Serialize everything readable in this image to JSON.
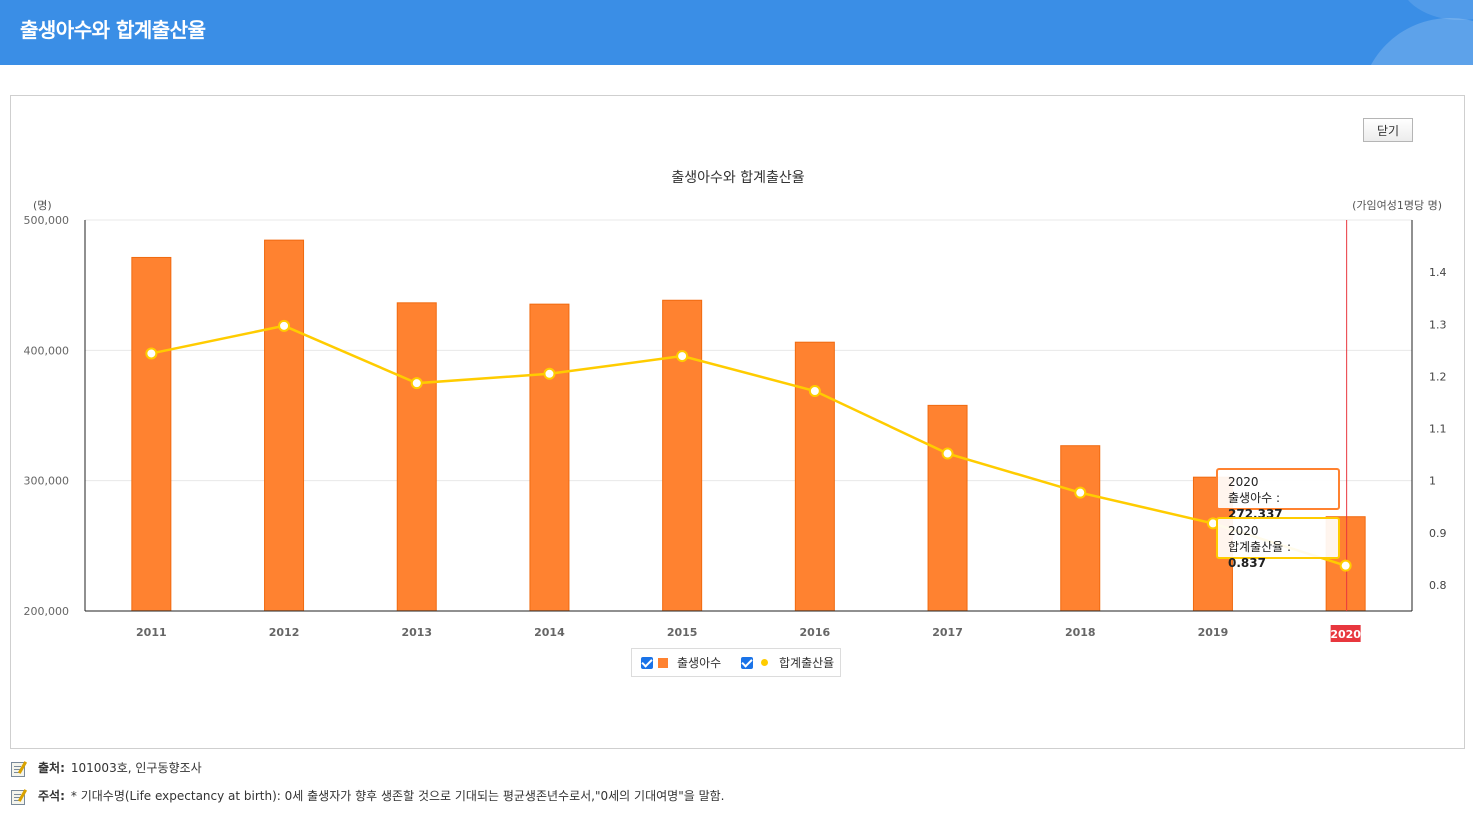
{
  "header": {
    "title": "출생아수와 합계출산율"
  },
  "buttons": {
    "close_label": "닫기"
  },
  "chart_data": {
    "type": "bar",
    "title": "출생아수와 합계출산율",
    "categories": [
      "2011",
      "2012",
      "2013",
      "2014",
      "2015",
      "2016",
      "2017",
      "2018",
      "2019",
      "2020"
    ],
    "series": [
      {
        "name": "출생아수",
        "type": "bar",
        "axis": "left",
        "color": "#ff8230",
        "values": [
          471265,
          484550,
          436455,
          435435,
          438420,
          406243,
          357771,
          326822,
          302676,
          272337
        ]
      },
      {
        "name": "합계출산율",
        "type": "line",
        "axis": "right",
        "color": "#ffcc00",
        "values": [
          1.244,
          1.297,
          1.187,
          1.205,
          1.239,
          1.172,
          1.052,
          0.977,
          0.918,
          0.837
        ]
      }
    ],
    "y_left": {
      "unit": "(명)",
      "ylim": [
        200000,
        500000
      ],
      "ticks": [
        "200,000",
        "300,000",
        "400,000",
        "500,000"
      ],
      "tick_values": [
        200000,
        300000,
        400000,
        500000
      ]
    },
    "y_right": {
      "unit": "(가임여성1명당 명)",
      "ylim": [
        0.75,
        1.5
      ],
      "ticks": [
        "0.8",
        "0.9",
        "1",
        "1.1",
        "1.2",
        "1.3",
        "1.4"
      ],
      "tick_values": [
        0.8,
        0.9,
        1.0,
        1.1,
        1.2,
        1.3,
        1.4
      ]
    },
    "highlight_category": "2020",
    "highlight_color": "#e8373e",
    "grid": true,
    "legend": [
      {
        "label": "출생아수",
        "marker": "square",
        "checked": true
      },
      {
        "label": "합계출산율",
        "marker": "dot",
        "checked": true
      }
    ],
    "tooltips": [
      {
        "year": "2020",
        "label": "출생아수 : ",
        "value": "272,337"
      },
      {
        "year": "2020",
        "label": "합계출산율 : ",
        "value": "0.837"
      }
    ]
  },
  "footer": {
    "source_label": "출처:",
    "source_text": "101003호, 인구동향조사",
    "note_label": "주석:",
    "note_text": "* 기대수명(Life expectancy at birth): 0세 출생자가 향후 생존할 것으로 기대되는 평균생존년수로서,\"0세의 기대여명\"을 말함."
  }
}
